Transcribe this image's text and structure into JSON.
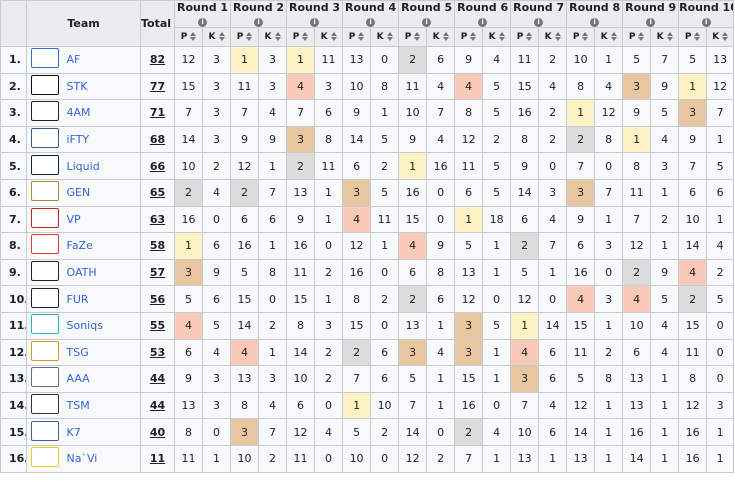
{
  "header": {
    "team": "Team",
    "total": "Total",
    "rounds": [
      "Round 1",
      "Round 2",
      "Round 3",
      "Round 4",
      "Round 5",
      "Round 6",
      "Round 7",
      "Round 8",
      "Round 9",
      "Round 10"
    ],
    "p_label": "P",
    "k_label": "K",
    "info_glyph": "i"
  },
  "highlight_colors": {
    "gold": "#fdf1c6",
    "silver": "#dcdcdc",
    "bronze": "#e8c6a2",
    "red": "#f8c8b8",
    "link": "#3366cc"
  },
  "rows": [
    {
      "rank": "1.",
      "logo": "af-logo",
      "name": "AF",
      "total": "82",
      "rounds": [
        [
          "12",
          "3",
          ""
        ],
        [
          "1",
          "3",
          "gold"
        ],
        [
          "1",
          "11",
          "gold"
        ],
        [
          "13",
          "0",
          ""
        ],
        [
          "2",
          "6",
          "silver"
        ],
        [
          "9",
          "4",
          ""
        ],
        [
          "11",
          "2",
          ""
        ],
        [
          "10",
          "1",
          ""
        ],
        [
          "5",
          "7",
          ""
        ],
        [
          "5",
          "13",
          ""
        ]
      ]
    },
    {
      "rank": "2.",
      "logo": "stk-logo",
      "name": "STK",
      "total": "77",
      "rounds": [
        [
          "15",
          "3",
          ""
        ],
        [
          "11",
          "3",
          ""
        ],
        [
          "4",
          "3",
          "red"
        ],
        [
          "10",
          "8",
          ""
        ],
        [
          "11",
          "4",
          ""
        ],
        [
          "4",
          "5",
          "red"
        ],
        [
          "15",
          "4",
          ""
        ],
        [
          "8",
          "4",
          ""
        ],
        [
          "3",
          "9",
          "bronze"
        ],
        [
          "1",
          "12",
          "gold"
        ]
      ]
    },
    {
      "rank": "3.",
      "logo": "4am-logo",
      "name": "4AM",
      "total": "71",
      "rounds": [
        [
          "7",
          "3",
          ""
        ],
        [
          "7",
          "4",
          ""
        ],
        [
          "7",
          "6",
          ""
        ],
        [
          "9",
          "1",
          ""
        ],
        [
          "10",
          "7",
          ""
        ],
        [
          "8",
          "5",
          ""
        ],
        [
          "16",
          "2",
          ""
        ],
        [
          "1",
          "12",
          "gold"
        ],
        [
          "9",
          "5",
          ""
        ],
        [
          "3",
          "7",
          "bronze"
        ]
      ]
    },
    {
      "rank": "4.",
      "logo": "ifty-logo",
      "name": "iFTY",
      "total": "68",
      "rounds": [
        [
          "14",
          "3",
          ""
        ],
        [
          "9",
          "9",
          ""
        ],
        [
          "3",
          "8",
          "bronze"
        ],
        [
          "14",
          "5",
          ""
        ],
        [
          "9",
          "4",
          ""
        ],
        [
          "12",
          "2",
          ""
        ],
        [
          "8",
          "2",
          ""
        ],
        [
          "2",
          "8",
          "silver"
        ],
        [
          "1",
          "4",
          "gold"
        ],
        [
          "9",
          "1",
          ""
        ]
      ]
    },
    {
      "rank": "5.",
      "logo": "liquid-logo",
      "name": "Liquid",
      "total": "66",
      "rounds": [
        [
          "10",
          "2",
          ""
        ],
        [
          "12",
          "1",
          ""
        ],
        [
          "2",
          "11",
          "silver"
        ],
        [
          "6",
          "2",
          ""
        ],
        [
          "1",
          "16",
          "gold"
        ],
        [
          "11",
          "5",
          ""
        ],
        [
          "9",
          "0",
          ""
        ],
        [
          "7",
          "0",
          ""
        ],
        [
          "8",
          "3",
          ""
        ],
        [
          "7",
          "5",
          ""
        ]
      ]
    },
    {
      "rank": "6.",
      "logo": "gen-logo",
      "name": "GEN",
      "total": "65",
      "rounds": [
        [
          "2",
          "4",
          "silver"
        ],
        [
          "2",
          "7",
          "silver"
        ],
        [
          "13",
          "1",
          ""
        ],
        [
          "3",
          "5",
          "bronze"
        ],
        [
          "16",
          "0",
          ""
        ],
        [
          "6",
          "5",
          ""
        ],
        [
          "14",
          "3",
          ""
        ],
        [
          "3",
          "7",
          "bronze"
        ],
        [
          "11",
          "1",
          ""
        ],
        [
          "6",
          "6",
          ""
        ]
      ]
    },
    {
      "rank": "7.",
      "logo": "vp-logo",
      "name": "VP",
      "total": "63",
      "rounds": [
        [
          "16",
          "0",
          ""
        ],
        [
          "6",
          "6",
          ""
        ],
        [
          "9",
          "1",
          ""
        ],
        [
          "4",
          "11",
          "red"
        ],
        [
          "15",
          "0",
          ""
        ],
        [
          "1",
          "18",
          "gold"
        ],
        [
          "6",
          "4",
          ""
        ],
        [
          "9",
          "1",
          ""
        ],
        [
          "7",
          "2",
          ""
        ],
        [
          "10",
          "1",
          ""
        ]
      ]
    },
    {
      "rank": "8.",
      "logo": "faze-logo",
      "name": "FaZe",
      "total": "58",
      "rounds": [
        [
          "1",
          "6",
          "gold"
        ],
        [
          "16",
          "1",
          ""
        ],
        [
          "16",
          "0",
          ""
        ],
        [
          "12",
          "1",
          ""
        ],
        [
          "4",
          "9",
          "red"
        ],
        [
          "5",
          "1",
          ""
        ],
        [
          "2",
          "7",
          "silver"
        ],
        [
          "6",
          "3",
          ""
        ],
        [
          "12",
          "1",
          ""
        ],
        [
          "14",
          "4",
          ""
        ]
      ]
    },
    {
      "rank": "9.",
      "logo": "oath-logo",
      "name": "OATH",
      "total": "57",
      "rounds": [
        [
          "3",
          "9",
          "bronze"
        ],
        [
          "5",
          "8",
          ""
        ],
        [
          "11",
          "2",
          ""
        ],
        [
          "16",
          "0",
          ""
        ],
        [
          "6",
          "8",
          ""
        ],
        [
          "13",
          "1",
          ""
        ],
        [
          "5",
          "1",
          ""
        ],
        [
          "16",
          "0",
          ""
        ],
        [
          "2",
          "9",
          "silver"
        ],
        [
          "4",
          "2",
          "red"
        ]
      ]
    },
    {
      "rank": "10.",
      "logo": "fur-logo",
      "name": "FUR",
      "total": "56",
      "rounds": [
        [
          "5",
          "6",
          ""
        ],
        [
          "15",
          "0",
          ""
        ],
        [
          "15",
          "1",
          ""
        ],
        [
          "8",
          "2",
          ""
        ],
        [
          "2",
          "6",
          "silver"
        ],
        [
          "12",
          "0",
          ""
        ],
        [
          "12",
          "0",
          ""
        ],
        [
          "4",
          "3",
          "red"
        ],
        [
          "4",
          "5",
          "red"
        ],
        [
          "2",
          "5",
          "silver"
        ]
      ]
    },
    {
      "rank": "11.",
      "logo": "soniqs-logo",
      "name": "Soniqs",
      "total": "55",
      "rounds": [
        [
          "4",
          "5",
          "red"
        ],
        [
          "14",
          "2",
          ""
        ],
        [
          "8",
          "3",
          ""
        ],
        [
          "15",
          "0",
          ""
        ],
        [
          "13",
          "1",
          ""
        ],
        [
          "3",
          "5",
          "bronze"
        ],
        [
          "1",
          "14",
          "gold"
        ],
        [
          "15",
          "1",
          ""
        ],
        [
          "10",
          "4",
          ""
        ],
        [
          "15",
          "0",
          ""
        ]
      ]
    },
    {
      "rank": "12.",
      "logo": "tsg-logo",
      "name": "TSG",
      "total": "53",
      "rounds": [
        [
          "6",
          "4",
          ""
        ],
        [
          "4",
          "1",
          "red"
        ],
        [
          "14",
          "2",
          ""
        ],
        [
          "2",
          "6",
          "silver"
        ],
        [
          "3",
          "4",
          "bronze"
        ],
        [
          "3",
          "1",
          "bronze"
        ],
        [
          "4",
          "6",
          "red"
        ],
        [
          "11",
          "2",
          ""
        ],
        [
          "6",
          "4",
          ""
        ],
        [
          "11",
          "0",
          ""
        ]
      ]
    },
    {
      "rank": "13.",
      "logo": "aaa-logo",
      "name": "AAA",
      "total": "44",
      "rounds": [
        [
          "9",
          "3",
          ""
        ],
        [
          "13",
          "3",
          ""
        ],
        [
          "10",
          "2",
          ""
        ],
        [
          "7",
          "6",
          ""
        ],
        [
          "5",
          "1",
          ""
        ],
        [
          "15",
          "1",
          ""
        ],
        [
          "3",
          "6",
          "bronze"
        ],
        [
          "5",
          "8",
          ""
        ],
        [
          "13",
          "1",
          ""
        ],
        [
          "8",
          "0",
          ""
        ]
      ]
    },
    {
      "rank": "14.",
      "logo": "tsm-logo",
      "name": "TSM",
      "total": "44",
      "rounds": [
        [
          "13",
          "3",
          ""
        ],
        [
          "8",
          "4",
          ""
        ],
        [
          "6",
          "0",
          ""
        ],
        [
          "1",
          "10",
          "gold"
        ],
        [
          "7",
          "1",
          ""
        ],
        [
          "16",
          "0",
          ""
        ],
        [
          "7",
          "4",
          ""
        ],
        [
          "12",
          "1",
          ""
        ],
        [
          "13",
          "1",
          ""
        ],
        [
          "12",
          "3",
          ""
        ]
      ]
    },
    {
      "rank": "15.",
      "logo": "k7-logo",
      "name": "K7",
      "total": "40",
      "rounds": [
        [
          "8",
          "0",
          ""
        ],
        [
          "3",
          "7",
          "bronze"
        ],
        [
          "12",
          "4",
          ""
        ],
        [
          "5",
          "2",
          ""
        ],
        [
          "14",
          "0",
          ""
        ],
        [
          "2",
          "4",
          "silver"
        ],
        [
          "10",
          "6",
          ""
        ],
        [
          "14",
          "1",
          ""
        ],
        [
          "16",
          "1",
          ""
        ],
        [
          "16",
          "1",
          ""
        ]
      ]
    },
    {
      "rank": "16.",
      "logo": "navi-logo",
      "name": "Na`Vi",
      "total": "11",
      "rounds": [
        [
          "11",
          "1",
          ""
        ],
        [
          "10",
          "2",
          ""
        ],
        [
          "11",
          "0",
          ""
        ],
        [
          "10",
          "0",
          ""
        ],
        [
          "12",
          "2",
          ""
        ],
        [
          "7",
          "1",
          ""
        ],
        [
          "13",
          "1",
          ""
        ],
        [
          "13",
          "1",
          ""
        ],
        [
          "14",
          "1",
          ""
        ],
        [
          "16",
          "1",
          ""
        ]
      ]
    }
  ]
}
